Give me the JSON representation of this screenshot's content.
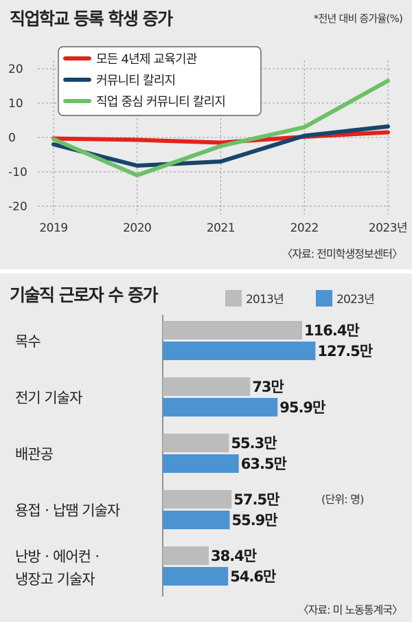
{
  "chart_data": [
    {
      "type": "line",
      "title": "직업학교 등록 학생 증가",
      "note": "*전년 대비 증가율(%)",
      "x": [
        "2019",
        "2020",
        "2021",
        "2022",
        "2023년"
      ],
      "ylim": [
        -20,
        20
      ],
      "y_ticks": [
        "20",
        "10",
        "0",
        "-10",
        "-20"
      ],
      "grid": true,
      "legend_position": "top-left",
      "series": [
        {
          "name": "모든 4년제 교육기관",
          "color": "#e2231a",
          "values": [
            -0.3,
            -0.7,
            -1.5,
            0.2,
            1.5
          ]
        },
        {
          "name": "커뮤니티 칼리지",
          "color": "#17456b",
          "values": [
            -2,
            -8.2,
            -7,
            0.5,
            3.2
          ]
        },
        {
          "name": "직업 중심 커뮤니티 칼리지",
          "color": "#6cc167",
          "values": [
            -0.5,
            -11,
            -2.5,
            3,
            16.5
          ]
        }
      ],
      "source": "〈자료: 전미학생정보센터〉"
    },
    {
      "type": "bar",
      "title": "기술직 근로자 수 증가",
      "unit_note": "(단위: 명)",
      "categories": [
        "목수",
        "전기 기술자",
        "배관공",
        "용접ㆍ납땜 기술자",
        "난방ㆍ에어컨ㆍ\n냉장고 기술자"
      ],
      "xlim": [
        0,
        160
      ],
      "legend_position": "top-right",
      "series": [
        {
          "name": "2013년",
          "color": "#bcbcbc",
          "values": [
            116.4,
            73,
            55.3,
            57.5,
            38.4
          ],
          "labels": [
            "116.4만",
            "73만",
            "55.3만",
            "57.5만",
            "38.4만"
          ]
        },
        {
          "name": "2023년",
          "color": "#4b93d1",
          "values": [
            127.5,
            95.9,
            63.5,
            55.9,
            54.6
          ],
          "labels": [
            "127.5만",
            "95.9만",
            "63.5만",
            "55.9만",
            "54.6만"
          ]
        }
      ],
      "source": "〈자료: 미 노동통계국〉"
    }
  ]
}
